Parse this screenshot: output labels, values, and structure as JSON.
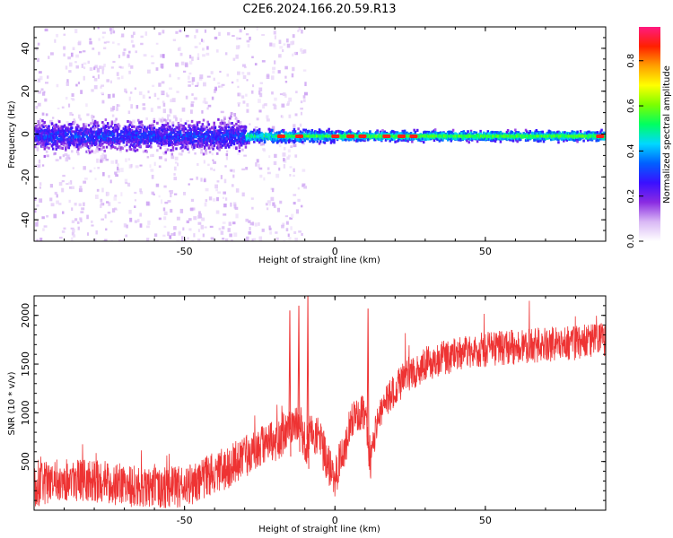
{
  "title": "C2E6.2024.166.20.59.R13",
  "chart_data": [
    {
      "type": "heatmap",
      "xlabel": "Height of straight line (km)",
      "ylabel": "Frequency (Hz)",
      "xlim": [
        -100,
        90
      ],
      "ylim": [
        -50,
        50
      ],
      "xticks": [
        -50,
        0,
        50
      ],
      "yticks": [
        -40,
        -20,
        0,
        20,
        40
      ],
      "colorbar": {
        "label": "Normalized spectral amplitude",
        "range": [
          0,
          0.95
        ],
        "ticks": [
          0.0,
          0.2,
          0.4,
          0.6,
          0.8
        ],
        "colormap": [
          "#ffffff",
          "#d9b8f5",
          "#8a2be2",
          "#3a10ff",
          "#0060ff",
          "#00d8ff",
          "#00ff60",
          "#7cff00",
          "#ffff00",
          "#ffa000",
          "#ff2000",
          "#ff1a80"
        ]
      },
      "ridge": {
        "description_free": true,
        "center_freq_hz": -1,
        "segments": [
          {
            "x_from": -100,
            "x_to": -30,
            "half_width_hz": 9,
            "amplitude": 0.3
          },
          {
            "x_from": -30,
            "x_to": 0,
            "half_width_hz": 4,
            "amplitude": 0.5
          },
          {
            "x_from": 0,
            "x_to": 90,
            "half_width_hz": 3,
            "amplitude": 0.55
          }
        ],
        "hot_spots_x": [
          -18,
          -12,
          0,
          5,
          9,
          17,
          22,
          26,
          88
        ]
      }
    },
    {
      "type": "line",
      "xlabel": "Height of straight line (km)",
      "ylabel": "SNR (10 * v/v)",
      "xlim": [
        -100,
        90
      ],
      "ylim": [
        0,
        2200
      ],
      "xticks": [
        -50,
        0,
        50
      ],
      "yticks": [
        500,
        1000,
        1500,
        2000
      ],
      "color": "#ee3333",
      "trend": {
        "x": [
          -100,
          -90,
          -80,
          -70,
          -60,
          -50,
          -45,
          -40,
          -35,
          -30,
          -25,
          -20,
          -15,
          -12,
          -10,
          -8,
          -5,
          -2,
          0,
          3,
          5,
          8,
          10,
          12,
          14,
          17,
          20,
          25,
          30,
          40,
          50,
          60,
          70,
          80,
          90
        ],
        "y": [
          250,
          320,
          300,
          260,
          220,
          240,
          300,
          380,
          450,
          550,
          650,
          700,
          850,
          900,
          600,
          850,
          700,
          450,
          350,
          600,
          900,
          1000,
          1000,
          500,
          900,
          1100,
          1250,
          1400,
          1500,
          1600,
          1650,
          1680,
          1700,
          1720,
          1750
        ]
      },
      "spikes": [
        {
          "x": -15,
          "y": 2050
        },
        {
          "x": -12,
          "y": 2100
        },
        {
          "x": -9,
          "y": 2200
        },
        {
          "x": 11,
          "y": 2070
        }
      ]
    }
  ]
}
